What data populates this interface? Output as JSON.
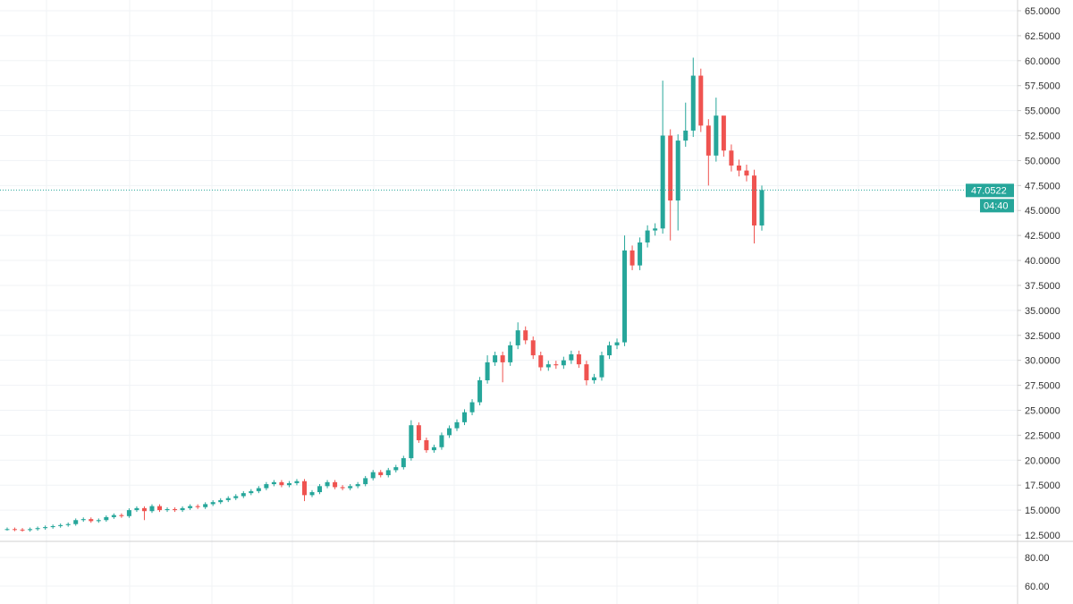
{
  "chart_data": {
    "type": "candlestick",
    "title": "",
    "ylim": [
      12.5,
      65
    ],
    "y_ticks": [
      "65.0000",
      "62.5000",
      "60.0000",
      "57.5000",
      "55.0000",
      "52.5000",
      "50.0000",
      "47.5000",
      "45.0000",
      "42.5000",
      "40.0000",
      "37.5000",
      "35.0000",
      "32.5000",
      "30.0000",
      "27.5000",
      "25.0000",
      "22.5000",
      "20.0000",
      "17.5000",
      "15.0000",
      "12.5000"
    ],
    "close": [
      13.1,
      13.05,
      13.0,
      13.1,
      13.2,
      13.3,
      13.4,
      13.5,
      13.6,
      14.0,
      14.1,
      13.9,
      14.0,
      14.3,
      14.5,
      14.4,
      15.0,
      15.2,
      14.9,
      15.4,
      15.0,
      15.1,
      15.0,
      15.2,
      15.4,
      15.3,
      15.6,
      15.8,
      16.0,
      16.2,
      16.4,
      16.7,
      16.9,
      17.2,
      17.6,
      17.8,
      17.5,
      17.7,
      17.9,
      16.5,
      16.8,
      17.4,
      17.8,
      17.3,
      17.2,
      17.4,
      17.6,
      18.2,
      18.8,
      18.5,
      19.0,
      19.3,
      20.2,
      23.5,
      22.0,
      21.0,
      21.3,
      22.5,
      23.2,
      23.8,
      24.8,
      25.8,
      28.0,
      29.8,
      30.5,
      29.8,
      31.5,
      33.0,
      32.0,
      30.5,
      29.3,
      29.6,
      29.5,
      30.0,
      30.6,
      29.6,
      28.0,
      28.3,
      30.5,
      31.5,
      31.8,
      41.0,
      39.5,
      41.8,
      43.0,
      43.2,
      52.5,
      46.0,
      52.0,
      53.0,
      58.5,
      53.5,
      50.5,
      54.5,
      51.0,
      49.5,
      49.0,
      48.5,
      43.5,
      47.05
    ],
    "first_open": 13.1,
    "high_overrides": {
      "53": 24.0,
      "63": 30.5,
      "67": 33.8,
      "81": 42.5,
      "86": 58.0,
      "89": 55.8,
      "90": 60.3,
      "93": 56.3,
      "94": 52.0,
      "99": 47.5
    },
    "low_overrides": {
      "18": 14.0,
      "39": 15.9,
      "65": 27.8,
      "76": 27.5,
      "87": 42.0,
      "88": 43.0,
      "92": 47.5,
      "98": 41.7
    },
    "last_price": "47.0522",
    "countdown": "04:40",
    "indicator_ticks": [
      "80.00",
      "60.00"
    ],
    "colors": {
      "up": "#26a69a",
      "down": "#ef5350",
      "last": "#26a69a"
    }
  }
}
